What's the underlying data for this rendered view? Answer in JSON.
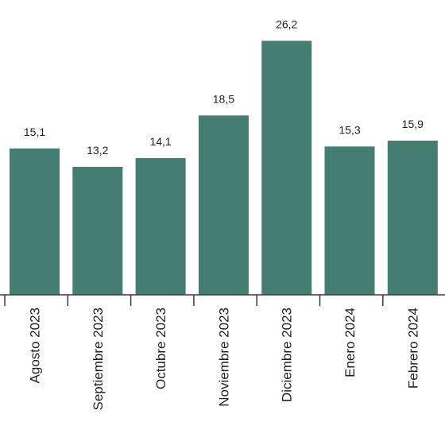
{
  "chart_data": {
    "type": "bar",
    "title": "",
    "xlabel": "",
    "ylabel": "",
    "categories": [
      "Agosto 2023",
      "Septiembre 2023",
      "Octubre 2023",
      "Noviembre 2023",
      "Diciembre 2023",
      "Enero 2024",
      "Febrero 2024"
    ],
    "values": [
      15.1,
      13.2,
      14.1,
      18.5,
      26.2,
      15.3,
      15.9
    ],
    "value_labels": [
      "15,1",
      "13,2",
      "14,1",
      "18,5",
      "26,2",
      "15,3",
      "15,9"
    ],
    "ylim": [
      0,
      30
    ],
    "grid": false,
    "legend": "none",
    "bar_color": "#467d72"
  }
}
